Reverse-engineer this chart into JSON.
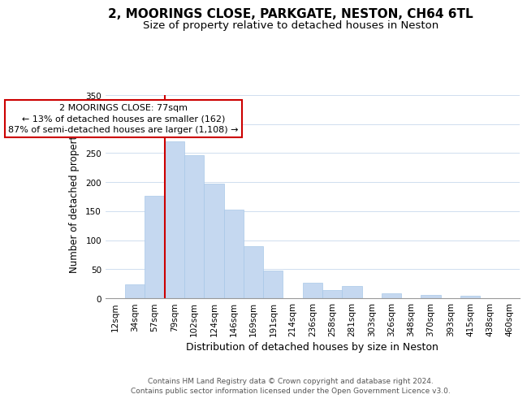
{
  "title": "2, MOORINGS CLOSE, PARKGATE, NESTON, CH64 6TL",
  "subtitle": "Size of property relative to detached houses in Neston",
  "xlabel": "Distribution of detached houses by size in Neston",
  "ylabel": "Number of detached properties",
  "bar_labels": [
    "12sqm",
    "34sqm",
    "57sqm",
    "79sqm",
    "102sqm",
    "124sqm",
    "146sqm",
    "169sqm",
    "191sqm",
    "214sqm",
    "236sqm",
    "258sqm",
    "281sqm",
    "303sqm",
    "326sqm",
    "348sqm",
    "370sqm",
    "393sqm",
    "415sqm",
    "438sqm",
    "460sqm"
  ],
  "bar_values": [
    0,
    24,
    176,
    270,
    246,
    197,
    153,
    89,
    48,
    0,
    26,
    14,
    21,
    0,
    8,
    0,
    5,
    0,
    4,
    0,
    0
  ],
  "bar_color": "#c5d8f0",
  "bar_edge_color": "#a8c8e8",
  "vline_x_index": 3,
  "vline_color": "#cc0000",
  "ylim": [
    0,
    350
  ],
  "yticks": [
    0,
    50,
    100,
    150,
    200,
    250,
    300,
    350
  ],
  "annotation_title": "2 MOORINGS CLOSE: 77sqm",
  "annotation_line1": "← 13% of detached houses are smaller (162)",
  "annotation_line2": "87% of semi-detached houses are larger (1,108) →",
  "annotation_box_color": "#ffffff",
  "annotation_box_edge": "#cc0000",
  "footer_line1": "Contains HM Land Registry data © Crown copyright and database right 2024.",
  "footer_line2": "Contains public sector information licensed under the Open Government Licence v3.0.",
  "title_fontsize": 11,
  "subtitle_fontsize": 9.5,
  "xlabel_fontsize": 9,
  "ylabel_fontsize": 8.5,
  "tick_fontsize": 7.5,
  "annotation_fontsize": 8,
  "footer_fontsize": 6.5
}
